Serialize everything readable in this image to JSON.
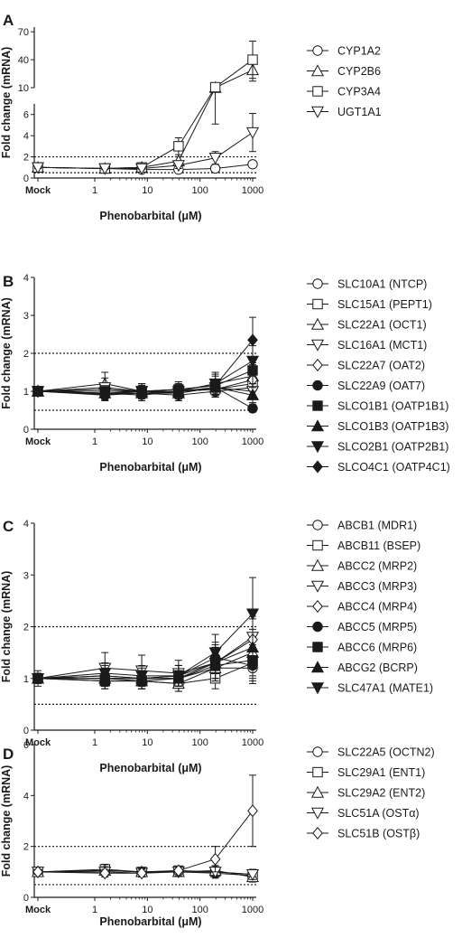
{
  "chart_data": [
    {
      "type": "line",
      "panel_letter": "A",
      "xlabel": "Phenobarbital (μM)",
      "ylabel": "Fold change (mRNA)",
      "x_ticks": [
        "Mock",
        "1",
        "10",
        "100",
        "1000"
      ],
      "x": [
        "Mock",
        1.56,
        7.81,
        39.1,
        195,
        1000
      ],
      "y_ticks_lower": [
        "0",
        "2",
        "4",
        "6"
      ],
      "y_ticks_upper": [
        "10",
        "40",
        "70"
      ],
      "ylim_lower": [
        0,
        7
      ],
      "ylim_upper": [
        10,
        75
      ],
      "reference_lines": [
        0.5,
        2
      ],
      "series": [
        {
          "name": "CYP1A2",
          "marker": "circle",
          "values": [
            1.0,
            0.9,
            0.8,
            0.8,
            0.9,
            1.3
          ],
          "err": [
            0.1,
            0.1,
            0.1,
            0.1,
            0.2,
            0.3
          ]
        },
        {
          "name": "CYP2B6",
          "marker": "triangle-up",
          "values": [
            1.0,
            0.9,
            1.0,
            1.6,
            9.6,
            29
          ],
          "err": [
            0.1,
            0.1,
            0.2,
            0.4,
            4.5,
            12
          ]
        },
        {
          "name": "CYP3A4",
          "marker": "square",
          "values": [
            1.0,
            0.9,
            1.0,
            3.0,
            10.5,
            40
          ],
          "err": [
            0.1,
            0.1,
            0.2,
            0.8,
            1.5,
            20
          ]
        },
        {
          "name": "UGT1A1",
          "marker": "triangle-down",
          "values": [
            1.0,
            0.9,
            0.9,
            1.2,
            1.9,
            4.3
          ],
          "err": [
            0.1,
            0.1,
            0.1,
            0.3,
            0.6,
            1.8
          ]
        }
      ]
    },
    {
      "type": "line",
      "panel_letter": "B",
      "xlabel": "Phenobarbital (μM)",
      "ylabel": "Fold change (mRNA)",
      "x_ticks": [
        "Mock",
        "1",
        "10",
        "100",
        "1000"
      ],
      "x": [
        "Mock",
        1.56,
        7.81,
        39.1,
        195,
        1000
      ],
      "y_ticks": [
        "0",
        "1",
        "2",
        "3",
        "4"
      ],
      "ylim": [
        0,
        4
      ],
      "reference_lines": [
        0.5,
        2
      ],
      "series": [
        {
          "name": "SLC10A1 (NTCP)",
          "marker": "circle",
          "values": [
            1.0,
            0.92,
            0.95,
            0.9,
            1.0,
            1.1
          ],
          "err": [
            0.1,
            0.1,
            0.1,
            0.1,
            0.15,
            0.2
          ]
        },
        {
          "name": "SLC15A1 (PEPT1)",
          "marker": "square",
          "values": [
            1.0,
            1.05,
            1.0,
            1.0,
            1.05,
            1.2
          ],
          "err": [
            0.1,
            0.15,
            0.15,
            0.15,
            0.2,
            0.3
          ]
        },
        {
          "name": "SLC22A1 (OCT1)",
          "marker": "triangle-up",
          "values": [
            1.0,
            1.2,
            1.0,
            1.0,
            1.2,
            1.4
          ],
          "err": [
            0.1,
            0.3,
            0.2,
            0.2,
            0.3,
            0.3
          ]
        },
        {
          "name": "SLC16A1 (MCT1)",
          "marker": "triangle-down",
          "values": [
            1.0,
            1.1,
            1.0,
            0.95,
            1.1,
            1.0
          ],
          "err": [
            0.1,
            0.25,
            0.2,
            0.2,
            0.2,
            0.2
          ]
        },
        {
          "name": "SLC22A7 (OAT2)",
          "marker": "diamond",
          "values": [
            1.0,
            0.95,
            0.9,
            1.0,
            1.05,
            1.3
          ],
          "err": [
            0.1,
            0.15,
            0.15,
            0.15,
            0.2,
            0.3
          ]
        },
        {
          "name": "SLC22A9 (OAT7)",
          "marker": "circle-filled",
          "values": [
            1.0,
            0.9,
            0.95,
            1.0,
            1.1,
            0.55
          ],
          "err": [
            0.1,
            0.15,
            0.15,
            0.15,
            0.2,
            0.1
          ]
        },
        {
          "name": "SLCO1B1 (OATP1B1)",
          "marker": "square-filled",
          "values": [
            1.0,
            1.0,
            1.0,
            1.05,
            1.15,
            1.55
          ],
          "err": [
            0.1,
            0.15,
            0.15,
            0.2,
            0.25,
            0.35
          ]
        },
        {
          "name": "SLCO1B3 (OATP1B3)",
          "marker": "triangle-up-filled",
          "values": [
            1.0,
            0.95,
            0.95,
            0.95,
            1.1,
            0.9
          ],
          "err": [
            0.1,
            0.15,
            0.15,
            0.15,
            0.2,
            0.2
          ]
        },
        {
          "name": "SLCO2B1 (OATP2B1)",
          "marker": "triangle-down-filled",
          "values": [
            1.0,
            0.95,
            1.0,
            1.0,
            1.2,
            1.8
          ],
          "err": [
            0.1,
            0.15,
            0.15,
            0.2,
            0.3,
            0.4
          ]
        },
        {
          "name": "SLCO4C1 (OATP4C1)",
          "marker": "diamond-filled",
          "values": [
            1.0,
            0.92,
            1.0,
            1.05,
            1.15,
            2.35
          ],
          "err": [
            0.1,
            0.15,
            0.2,
            0.2,
            0.3,
            0.6
          ]
        }
      ]
    },
    {
      "type": "line",
      "panel_letter": "C",
      "xlabel": "Phenobarbital (μM)",
      "ylabel": "Fold change (mRNA)",
      "x_ticks": [
        "Mock",
        "1",
        "10",
        "100",
        "1000"
      ],
      "x": [
        "Mock",
        1.56,
        7.81,
        39.1,
        195,
        1000
      ],
      "y_ticks": [
        "0",
        "1",
        "2",
        "3",
        "4"
      ],
      "ylim": [
        0,
        4
      ],
      "reference_lines": [
        0.5,
        2
      ],
      "series": [
        {
          "name": "ABCB1 (MDR1)",
          "marker": "circle",
          "values": [
            1.0,
            1.0,
            1.0,
            1.0,
            1.2,
            1.2
          ],
          "err": [
            0.15,
            0.15,
            0.15,
            0.15,
            0.2,
            0.3
          ]
        },
        {
          "name": "ABCB11 (BSEP)",
          "marker": "square",
          "values": [
            1.0,
            0.95,
            0.95,
            0.9,
            1.0,
            1.3
          ],
          "err": [
            0.1,
            0.15,
            0.15,
            0.15,
            0.2,
            0.3
          ]
        },
        {
          "name": "ABCC2 (MRP2)",
          "marker": "triangle-up",
          "values": [
            1.0,
            1.0,
            0.95,
            0.9,
            1.2,
            1.5
          ],
          "err": [
            0.1,
            0.15,
            0.15,
            0.15,
            0.25,
            0.3
          ]
        },
        {
          "name": "ABCC3 (MRP3)",
          "marker": "triangle-down",
          "values": [
            1.0,
            1.2,
            1.15,
            1.1,
            1.3,
            1.8
          ],
          "err": [
            0.1,
            0.3,
            0.3,
            0.25,
            0.35,
            0.4
          ]
        },
        {
          "name": "ABCC4 (MRP4)",
          "marker": "diamond",
          "values": [
            1.0,
            1.05,
            1.0,
            1.05,
            1.3,
            1.75
          ],
          "err": [
            0.1,
            0.2,
            0.2,
            0.2,
            0.3,
            0.4
          ]
        },
        {
          "name": "ABCC5 (MRP5)",
          "marker": "circle-filled",
          "values": [
            1.0,
            1.05,
            1.0,
            1.05,
            1.4,
            1.25
          ],
          "err": [
            0.1,
            0.15,
            0.15,
            0.2,
            0.3,
            0.3
          ]
        },
        {
          "name": "ABCC6 (MRP6)",
          "marker": "square-filled",
          "values": [
            1.0,
            0.95,
            0.95,
            1.0,
            1.25,
            1.35
          ],
          "err": [
            0.1,
            0.15,
            0.15,
            0.15,
            0.25,
            0.3
          ]
        },
        {
          "name": "ABCG2 (BCRP)",
          "marker": "triangle-up-filled",
          "values": [
            1.0,
            1.0,
            1.0,
            1.0,
            1.3,
            1.6
          ],
          "err": [
            0.1,
            0.15,
            0.15,
            0.15,
            0.3,
            0.35
          ]
        },
        {
          "name": "SLC47A1 (MATE1)",
          "marker": "triangle-down-filled",
          "values": [
            1.0,
            1.1,
            1.05,
            1.05,
            1.5,
            2.25
          ],
          "err": [
            0.1,
            0.2,
            0.2,
            0.2,
            0.35,
            0.7
          ]
        }
      ]
    },
    {
      "type": "line",
      "panel_letter": "D",
      "xlabel": "Phenobarbital (μM)",
      "ylabel": "Fold change (mRNA)",
      "x_ticks": [
        "Mock",
        "1",
        "10",
        "100",
        "1000"
      ],
      "x": [
        "Mock",
        1.56,
        7.81,
        39.1,
        195,
        1000
      ],
      "y_ticks": [
        "0",
        "2",
        "4",
        "6"
      ],
      "ylim": [
        0,
        6
      ],
      "reference_lines": [
        0.5,
        2
      ],
      "series": [
        {
          "name": "SLC22A5 (OCTN2)",
          "marker": "circle",
          "values": [
            1.0,
            1.05,
            1.0,
            1.0,
            0.95,
            0.85
          ],
          "err": [
            0.1,
            0.15,
            0.15,
            0.15,
            0.2,
            0.2
          ]
        },
        {
          "name": "SLC29A1 (ENT1)",
          "marker": "square",
          "values": [
            1.0,
            1.1,
            1.0,
            1.05,
            1.0,
            0.9
          ],
          "err": [
            0.1,
            0.2,
            0.15,
            0.15,
            0.2,
            0.2
          ]
        },
        {
          "name": "SLC29A2 (ENT2)",
          "marker": "triangle-up",
          "values": [
            1.0,
            1.05,
            1.0,
            1.0,
            1.05,
            0.8
          ],
          "err": [
            0.1,
            0.15,
            0.15,
            0.15,
            0.2,
            0.2
          ]
        },
        {
          "name": "SLC51A (OSTα)",
          "marker": "triangle-down",
          "values": [
            1.0,
            1.0,
            0.95,
            1.0,
            1.0,
            0.9
          ],
          "err": [
            0.1,
            0.15,
            0.15,
            0.15,
            0.2,
            0.2
          ]
        },
        {
          "name": "SLC51B (OSTβ)",
          "marker": "diamond",
          "values": [
            1.0,
            0.95,
            0.95,
            1.05,
            1.5,
            3.4
          ],
          "err": [
            0.1,
            0.15,
            0.15,
            0.15,
            0.5,
            1.4
          ]
        }
      ]
    }
  ]
}
